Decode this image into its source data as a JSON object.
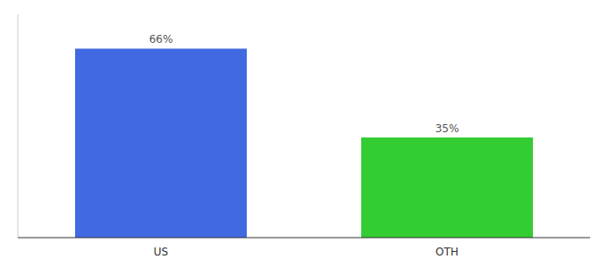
{
  "chart_data": {
    "type": "bar",
    "categories": [
      "US",
      "OTH"
    ],
    "values": [
      66,
      35
    ],
    "value_labels": [
      "66%",
      "35%"
    ],
    "colors": [
      "#4169e1",
      "#33cc33"
    ],
    "ylim": [
      0,
      78
    ],
    "data_labels": true,
    "tick_labels": "x"
  }
}
